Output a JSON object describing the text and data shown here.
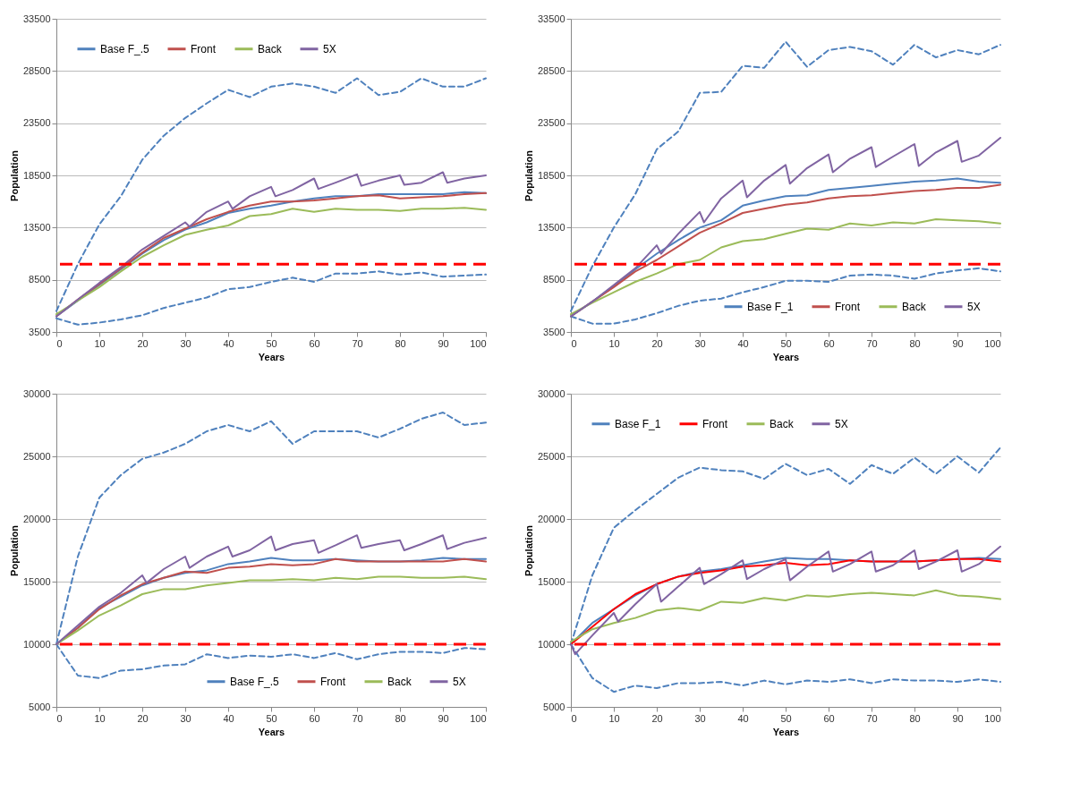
{
  "chart_data": [
    {
      "type": "line",
      "xlabel": "Years",
      "ylabel": "Population",
      "xlim": [
        0,
        100
      ],
      "xticks": [
        0,
        10,
        20,
        30,
        40,
        50,
        60,
        70,
        80,
        90,
        100
      ],
      "ylim": [
        3500,
        33500
      ],
      "yticks": [
        3500,
        8500,
        13500,
        18500,
        23500,
        28500,
        33500
      ],
      "grid": "y",
      "legend": "top left",
      "marker": "none",
      "x": [
        0,
        5,
        10,
        15,
        20,
        25,
        30,
        35,
        40,
        45,
        50,
        55,
        60,
        65,
        70,
        75,
        80,
        85,
        90,
        95,
        100
      ],
      "ref_lines": [
        {
          "axis": "y",
          "value": 10000,
          "color": "#ff0000",
          "line_style": "dashed"
        }
      ],
      "series": [
        {
          "color": "#4f81bd",
          "line_style": "dashed",
          "values": [
            5500,
            10000,
            13800,
            16500,
            20000,
            22300,
            24000,
            25400,
            26700,
            26000,
            27000,
            27300,
            27000,
            26400,
            27800,
            26200,
            26500,
            27800,
            27000,
            27000,
            27800
          ]
        },
        {
          "color": "#4f81bd",
          "line_style": "dashed",
          "values": [
            4800,
            4200,
            4400,
            4700,
            5100,
            5800,
            6300,
            6800,
            7600,
            7800,
            8300,
            8700,
            8300,
            9100,
            9100,
            9300,
            9000,
            9200,
            8800,
            8900,
            9000
          ]
        },
        {
          "name": "Base F_.5",
          "color": "#4f81bd",
          "values": [
            5000,
            6500,
            8000,
            9500,
            11000,
            12300,
            13300,
            14000,
            14900,
            15300,
            15600,
            16000,
            16300,
            16500,
            16500,
            16700,
            16700,
            16700,
            16700,
            16900,
            16800
          ]
        },
        {
          "name": "Front",
          "color": "#c0504d",
          "values": [
            5000,
            6600,
            8100,
            9600,
            11100,
            12500,
            13400,
            14300,
            15000,
            15600,
            16000,
            16000,
            16100,
            16300,
            16500,
            16600,
            16300,
            16400,
            16500,
            16700,
            16800
          ]
        },
        {
          "name": "Back",
          "color": "#9bbb59",
          "values": [
            5200,
            6500,
            7800,
            9300,
            10700,
            11800,
            12800,
            13300,
            13700,
            14600,
            14800,
            15300,
            15000,
            15300,
            15200,
            15200,
            15100,
            15300,
            15300,
            15400,
            15200
          ]
        },
        {
          "name": "5X",
          "color": "#8064a2",
          "x": [
            0,
            5,
            10,
            15,
            20,
            25,
            30,
            31,
            35,
            40,
            41,
            45,
            50,
            51,
            55,
            60,
            61,
            65,
            70,
            71,
            75,
            80,
            81,
            85,
            90,
            91,
            95,
            100
          ],
          "values": [
            5000,
            6600,
            8200,
            9700,
            11400,
            12700,
            14000,
            13600,
            15000,
            16000,
            15300,
            16500,
            17400,
            16500,
            17100,
            18200,
            17200,
            17800,
            18600,
            17500,
            18000,
            18500,
            17600,
            17800,
            18800,
            17800,
            18200,
            18500
          ]
        }
      ]
    },
    {
      "type": "line",
      "xlabel": "Years",
      "ylabel": "Population",
      "xlim": [
        0,
        100
      ],
      "xticks": [
        0,
        10,
        20,
        30,
        40,
        50,
        60,
        70,
        80,
        90,
        100
      ],
      "ylim": [
        3500,
        33500
      ],
      "yticks": [
        3500,
        8500,
        13500,
        18500,
        23500,
        28500,
        33500
      ],
      "grid": "y",
      "legend": "bottom right",
      "marker": "none",
      "x": [
        0,
        5,
        10,
        15,
        20,
        25,
        30,
        35,
        40,
        45,
        50,
        55,
        60,
        65,
        70,
        75,
        80,
        85,
        90,
        95,
        100
      ],
      "ref_lines": [
        {
          "axis": "y",
          "value": 10000,
          "color": "#ff0000",
          "line_style": "dashed"
        }
      ],
      "series": [
        {
          "color": "#4f81bd",
          "line_style": "dashed",
          "values": [
            5500,
            9800,
            13500,
            16700,
            21000,
            22700,
            26400,
            26500,
            29000,
            28800,
            31300,
            28900,
            30500,
            30800,
            30400,
            29100,
            31000,
            29800,
            30500,
            30100,
            31000
          ]
        },
        {
          "color": "#4f81bd",
          "line_style": "dashed",
          "values": [
            5000,
            4300,
            4300,
            4700,
            5300,
            6000,
            6500,
            6700,
            7300,
            7800,
            8400,
            8400,
            8300,
            8900,
            9000,
            8900,
            8600,
            9100,
            9400,
            9600,
            9300
          ]
        },
        {
          "name": "Base F_1",
          "color": "#4f81bd",
          "values": [
            5000,
            6400,
            7900,
            9500,
            11000,
            12300,
            13500,
            14200,
            15600,
            16100,
            16500,
            16600,
            17100,
            17300,
            17500,
            17700,
            17900,
            18000,
            18200,
            17900,
            17800
          ]
        },
        {
          "name": "Front",
          "color": "#c0504d",
          "values": [
            5000,
            6400,
            7800,
            9300,
            10400,
            11700,
            13000,
            13900,
            14900,
            15300,
            15700,
            15900,
            16300,
            16500,
            16600,
            16800,
            17000,
            17100,
            17300,
            17300,
            17600
          ]
        },
        {
          "name": "Back",
          "color": "#9bbb59",
          "values": [
            5200,
            6300,
            7300,
            8300,
            9100,
            10000,
            10400,
            11600,
            12200,
            12400,
            12900,
            13400,
            13300,
            13900,
            13700,
            14000,
            13900,
            14300,
            14200,
            14100,
            13900
          ]
        },
        {
          "name": "5X",
          "color": "#8064a2",
          "x": [
            0,
            5,
            10,
            15,
            20,
            21,
            25,
            30,
            31,
            35,
            40,
            41,
            45,
            50,
            51,
            55,
            60,
            61,
            65,
            70,
            71,
            75,
            80,
            81,
            85,
            90,
            91,
            95,
            100
          ],
          "values": [
            5000,
            6400,
            8000,
            9600,
            11800,
            11000,
            12900,
            15000,
            14000,
            16300,
            18000,
            16400,
            18000,
            19500,
            17700,
            19200,
            20500,
            18800,
            20100,
            21200,
            19300,
            20300,
            21500,
            19400,
            20700,
            21800,
            19800,
            20400,
            22100
          ]
        }
      ]
    },
    {
      "type": "line",
      "xlabel": "Years",
      "ylabel": "Population",
      "xlim": [
        0,
        100
      ],
      "xticks": [
        0,
        10,
        20,
        30,
        40,
        50,
        60,
        70,
        80,
        90,
        100
      ],
      "ylim": [
        5000,
        30000
      ],
      "yticks": [
        5000,
        10000,
        15000,
        20000,
        25000,
        30000
      ],
      "grid": "y",
      "legend": "bottom right",
      "marker": "none",
      "x": [
        0,
        5,
        10,
        15,
        20,
        25,
        30,
        35,
        40,
        45,
        50,
        55,
        60,
        65,
        70,
        75,
        80,
        85,
        90,
        95,
        100
      ],
      "ref_lines": [
        {
          "axis": "y",
          "value": 10000,
          "color": "#ff0000",
          "line_style": "dashed"
        }
      ],
      "series": [
        {
          "color": "#4f81bd",
          "line_style": "dashed",
          "values": [
            10000,
            17000,
            21700,
            23500,
            24800,
            25300,
            26000,
            27000,
            27500,
            27000,
            27800,
            26000,
            27000,
            27000,
            27000,
            26500,
            27200,
            28000,
            28500,
            27500,
            27700
          ]
        },
        {
          "color": "#4f81bd",
          "line_style": "dashed",
          "values": [
            10000,
            7500,
            7300,
            7900,
            8000,
            8300,
            8400,
            9200,
            8900,
            9100,
            9000,
            9200,
            8900,
            9300,
            8800,
            9200,
            9400,
            9400,
            9300,
            9700,
            9600
          ]
        },
        {
          "name": "Base F_.5",
          "color": "#4f81bd",
          "values": [
            10000,
            11300,
            12900,
            13800,
            14700,
            15300,
            15700,
            15900,
            16400,
            16600,
            16900,
            16700,
            16700,
            16800,
            16700,
            16600,
            16600,
            16700,
            16900,
            16800,
            16800
          ]
        },
        {
          "name": "Front",
          "color": "#c0504d",
          "values": [
            10000,
            11300,
            12800,
            13900,
            14800,
            15300,
            15800,
            15700,
            16100,
            16200,
            16400,
            16300,
            16400,
            16800,
            16600,
            16600,
            16600,
            16600,
            16600,
            16800,
            16600
          ]
        },
        {
          "name": "Back",
          "color": "#9bbb59",
          "values": [
            10000,
            11100,
            12300,
            13100,
            14000,
            14400,
            14400,
            14700,
            14900,
            15100,
            15100,
            15200,
            15100,
            15300,
            15200,
            15400,
            15400,
            15300,
            15300,
            15400,
            15200
          ]
        },
        {
          "name": "5X",
          "color": "#8064a2",
          "x": [
            0,
            5,
            10,
            15,
            20,
            21,
            25,
            30,
            31,
            35,
            40,
            41,
            45,
            50,
            51,
            55,
            60,
            61,
            65,
            70,
            71,
            75,
            80,
            81,
            85,
            90,
            91,
            95,
            100
          ],
          "values": [
            10000,
            11500,
            13000,
            14100,
            15500,
            14900,
            16000,
            17000,
            16100,
            17000,
            17800,
            17000,
            17500,
            18600,
            17500,
            18000,
            18300,
            17300,
            17900,
            18700,
            17700,
            18000,
            18300,
            17500,
            18000,
            18700,
            17600,
            18100,
            18500
          ]
        }
      ]
    },
    {
      "type": "line",
      "xlabel": "Years",
      "ylabel": "Population",
      "xlim": [
        0,
        100
      ],
      "xticks": [
        0,
        10,
        20,
        30,
        40,
        50,
        60,
        70,
        80,
        90,
        100
      ],
      "ylim": [
        5000,
        30000
      ],
      "yticks": [
        5000,
        10000,
        15000,
        20000,
        25000,
        30000
      ],
      "grid": "y",
      "legend": "top left",
      "marker": "none",
      "x": [
        0,
        5,
        10,
        15,
        20,
        25,
        30,
        35,
        40,
        45,
        50,
        55,
        60,
        65,
        70,
        75,
        80,
        85,
        90,
        95,
        100
      ],
      "ref_lines": [
        {
          "axis": "y",
          "value": 10000,
          "color": "#ff0000",
          "line_style": "dashed"
        }
      ],
      "series": [
        {
          "color": "#4f81bd",
          "line_style": "dashed",
          "values": [
            10000,
            15500,
            19300,
            20700,
            22000,
            23300,
            24100,
            23900,
            23800,
            23200,
            24400,
            23500,
            24000,
            22800,
            24300,
            23600,
            24900,
            23600,
            25000,
            23700,
            25700
          ]
        },
        {
          "color": "#4f81bd",
          "line_style": "dashed",
          "values": [
            10000,
            7300,
            6200,
            6700,
            6500,
            6900,
            6900,
            7000,
            6700,
            7100,
            6800,
            7100,
            7000,
            7200,
            6900,
            7200,
            7100,
            7100,
            7000,
            7200,
            7000
          ]
        },
        {
          "name": "Base F_1",
          "color": "#4f81bd",
          "values": [
            10000,
            11700,
            12800,
            13900,
            14800,
            15400,
            15800,
            16000,
            16300,
            16600,
            16900,
            16800,
            16800,
            16700,
            16600,
            16600,
            16600,
            16700,
            16800,
            16900,
            16800
          ]
        },
        {
          "name": "Front",
          "color": "#ff0000",
          "values": [
            10000,
            11400,
            12800,
            14000,
            14800,
            15400,
            15700,
            15900,
            16200,
            16300,
            16500,
            16300,
            16400,
            16700,
            16600,
            16600,
            16600,
            16700,
            16800,
            16800,
            16600
          ]
        },
        {
          "name": "Back",
          "color": "#9bbb59",
          "values": [
            10200,
            11200,
            11700,
            12100,
            12700,
            12900,
            12700,
            13400,
            13300,
            13700,
            13500,
            13900,
            13800,
            14000,
            14100,
            14000,
            13900,
            14300,
            13900,
            13800,
            13600
          ]
        },
        {
          "name": "5X",
          "color": "#8064a2",
          "x": [
            0,
            1,
            5,
            10,
            11,
            15,
            20,
            21,
            25,
            30,
            31,
            35,
            40,
            41,
            45,
            50,
            51,
            55,
            60,
            61,
            65,
            70,
            71,
            75,
            80,
            81,
            85,
            90,
            91,
            95,
            100
          ],
          "values": [
            10000,
            9200,
            10700,
            12500,
            11800,
            13200,
            14800,
            13400,
            14600,
            16100,
            14800,
            15600,
            16700,
            15200,
            16000,
            16800,
            15100,
            16200,
            17400,
            15800,
            16400,
            17400,
            15800,
            16300,
            17500,
            16000,
            16600,
            17500,
            15800,
            16400,
            17800
          ]
        }
      ]
    }
  ]
}
